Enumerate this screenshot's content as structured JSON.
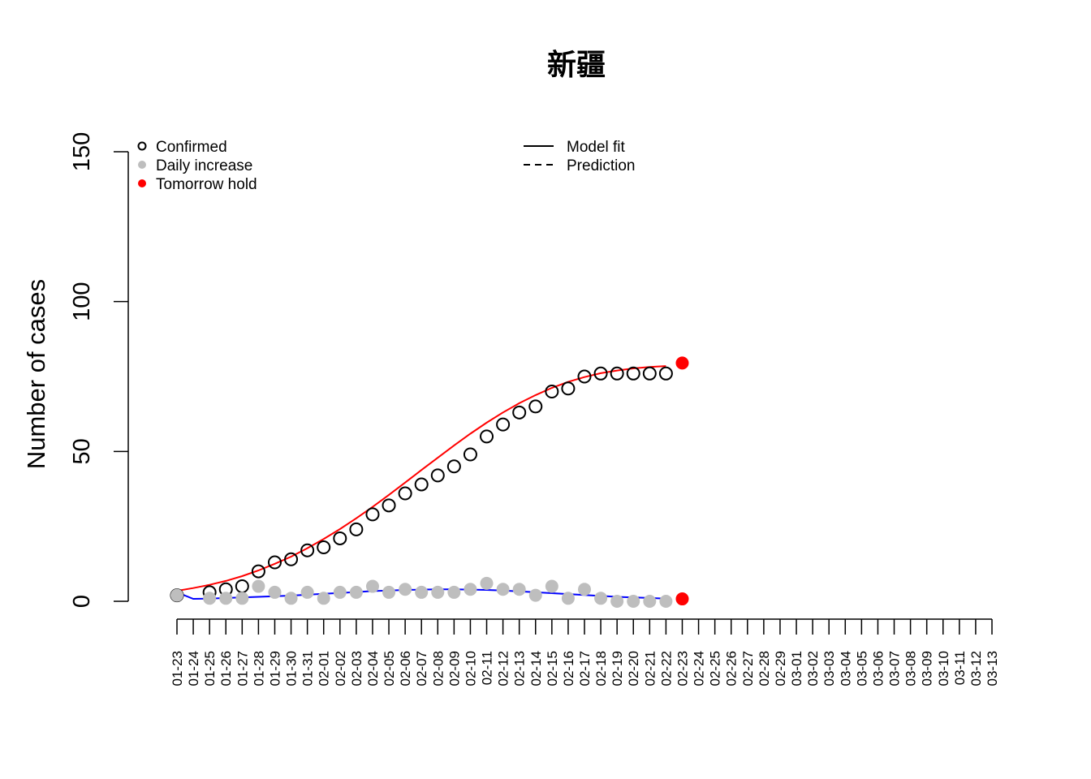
{
  "chart_data": {
    "type": "scatter",
    "title": "新疆",
    "xlabel": "",
    "ylabel": "Number of cases",
    "ylim": [
      0,
      150
    ],
    "yticks": [
      "0",
      "50",
      "100",
      "150"
    ],
    "x": [
      "01-23",
      "01-24",
      "01-25",
      "01-26",
      "01-27",
      "01-28",
      "01-29",
      "01-30",
      "01-31",
      "02-01",
      "02-02",
      "02-03",
      "02-04",
      "02-05",
      "02-06",
      "02-07",
      "02-08",
      "02-09",
      "02-10",
      "02-11",
      "02-12",
      "02-13",
      "02-14",
      "02-15",
      "02-16",
      "02-17",
      "02-18",
      "02-19",
      "02-20",
      "02-21",
      "02-22",
      "02-23",
      "02-24",
      "02-25",
      "02-26",
      "02-27",
      "02-28",
      "02-29",
      "03-01",
      "03-02",
      "03-03",
      "03-04",
      "03-05",
      "03-06",
      "03-07",
      "03-08",
      "03-09",
      "03-10",
      "03-11",
      "03-12",
      "03-13"
    ],
    "series": [
      {
        "name": "Confirmed",
        "marker": "open-circle",
        "color": "#000000",
        "points": [
          [
            "01-23",
            2
          ],
          [
            "01-25",
            3
          ],
          [
            "01-26",
            4
          ],
          [
            "01-27",
            5
          ],
          [
            "01-28",
            10
          ],
          [
            "01-29",
            13
          ],
          [
            "01-30",
            14
          ],
          [
            "01-31",
            17
          ],
          [
            "02-01",
            18
          ],
          [
            "02-02",
            21
          ],
          [
            "02-03",
            24
          ],
          [
            "02-04",
            29
          ],
          [
            "02-05",
            32
          ],
          [
            "02-06",
            36
          ],
          [
            "02-07",
            39
          ],
          [
            "02-08",
            42
          ],
          [
            "02-09",
            45
          ],
          [
            "02-10",
            49
          ],
          [
            "02-11",
            55
          ],
          [
            "02-12",
            59
          ],
          [
            "02-13",
            63
          ],
          [
            "02-14",
            65
          ],
          [
            "02-15",
            70
          ],
          [
            "02-16",
            71
          ],
          [
            "02-17",
            75
          ],
          [
            "02-18",
            76
          ],
          [
            "02-19",
            76
          ],
          [
            "02-20",
            76
          ],
          [
            "02-21",
            76
          ],
          [
            "02-22",
            76
          ]
        ]
      },
      {
        "name": "Daily increase",
        "marker": "filled-circle",
        "color": "#bebebe",
        "points": [
          [
            "01-23",
            2
          ],
          [
            "01-25",
            1
          ],
          [
            "01-26",
            1
          ],
          [
            "01-27",
            1
          ],
          [
            "01-28",
            5
          ],
          [
            "01-29",
            3
          ],
          [
            "01-30",
            1
          ],
          [
            "01-31",
            3
          ],
          [
            "02-01",
            1
          ],
          [
            "02-02",
            3
          ],
          [
            "02-03",
            3
          ],
          [
            "02-04",
            5
          ],
          [
            "02-05",
            3
          ],
          [
            "02-06",
            4
          ],
          [
            "02-07",
            3
          ],
          [
            "02-08",
            3
          ],
          [
            "02-09",
            3
          ],
          [
            "02-10",
            4
          ],
          [
            "02-11",
            6
          ],
          [
            "02-12",
            4
          ],
          [
            "02-13",
            4
          ],
          [
            "02-14",
            2
          ],
          [
            "02-15",
            5
          ],
          [
            "02-16",
            1
          ],
          [
            "02-17",
            4
          ],
          [
            "02-18",
            1
          ],
          [
            "02-19",
            0
          ],
          [
            "02-20",
            0
          ],
          [
            "02-21",
            0
          ],
          [
            "02-22",
            0
          ]
        ]
      },
      {
        "name": "Tomorrow hold",
        "marker": "filled-circle",
        "color": "#ff0000",
        "points": [
          [
            "02-23",
            79.5
          ],
          [
            "02-23",
            0.8
          ]
        ]
      },
      {
        "name": "Model fit",
        "line": "solid",
        "color": "#ff0000",
        "points": [
          [
            "01-23",
            3.5
          ],
          [
            "01-24",
            4.4
          ],
          [
            "01-25",
            5.5
          ],
          [
            "01-26",
            6.8
          ],
          [
            "01-27",
            8.4
          ],
          [
            "01-28",
            10.3
          ],
          [
            "01-29",
            12.5
          ],
          [
            "01-30",
            14.9
          ],
          [
            "01-31",
            17.7
          ],
          [
            "02-01",
            20.8
          ],
          [
            "02-02",
            24.1
          ],
          [
            "02-03",
            27.7
          ],
          [
            "02-04",
            31.5
          ],
          [
            "02-05",
            35.5
          ],
          [
            "02-06",
            39.6
          ],
          [
            "02-07",
            43.8
          ],
          [
            "02-08",
            47.9
          ],
          [
            "02-09",
            52
          ],
          [
            "02-10",
            55.9
          ],
          [
            "02-11",
            59.6
          ],
          [
            "02-12",
            63
          ],
          [
            "02-13",
            66.1
          ],
          [
            "02-14",
            68.8
          ],
          [
            "02-15",
            71.2
          ],
          [
            "02-16",
            73.2
          ],
          [
            "02-17",
            74.8
          ],
          [
            "02-18",
            76.1
          ],
          [
            "02-19",
            77
          ],
          [
            "02-20",
            77.7
          ],
          [
            "02-21",
            78.2
          ],
          [
            "02-22",
            78.5
          ]
        ]
      },
      {
        "name": "Model fit (daily)",
        "line": "solid",
        "color": "#0000ff",
        "points": [
          [
            "01-23",
            3
          ],
          [
            "01-24",
            0.8
          ],
          [
            "01-25",
            0.9
          ],
          [
            "01-26",
            1.1
          ],
          [
            "01-27",
            1.3
          ],
          [
            "01-28",
            1.5
          ],
          [
            "01-29",
            1.7
          ],
          [
            "01-30",
            1.9
          ],
          [
            "01-31",
            2.2
          ],
          [
            "02-01",
            2.5
          ],
          [
            "02-02",
            2.8
          ],
          [
            "02-03",
            3.1
          ],
          [
            "02-04",
            3.4
          ],
          [
            "02-05",
            3.6
          ],
          [
            "02-06",
            3.8
          ],
          [
            "02-07",
            3.9
          ],
          [
            "02-08",
            4
          ],
          [
            "02-09",
            4
          ],
          [
            "02-10",
            3.9
          ],
          [
            "02-11",
            3.8
          ],
          [
            "02-12",
            3.6
          ],
          [
            "02-13",
            3.3
          ],
          [
            "02-14",
            3
          ],
          [
            "02-15",
            2.7
          ],
          [
            "02-16",
            2.4
          ],
          [
            "02-17",
            2.1
          ],
          [
            "02-18",
            1.8
          ],
          [
            "02-19",
            1.5
          ],
          [
            "02-20",
            1.3
          ],
          [
            "02-21",
            1.1
          ],
          [
            "02-22",
            0.9
          ]
        ]
      }
    ],
    "legend": {
      "left": [
        {
          "label": "Confirmed",
          "marker": "open-circle",
          "color": "#000000"
        },
        {
          "label": "Daily increase",
          "marker": "filled-circle",
          "color": "#bebebe"
        },
        {
          "label": "Tomorrow hold",
          "marker": "filled-circle",
          "color": "#ff0000"
        }
      ],
      "right": [
        {
          "label": "Model fit",
          "line": "solid",
          "color": "#000000"
        },
        {
          "label": "Prediction",
          "line": "dashed",
          "color": "#000000"
        }
      ],
      "placement": "top"
    },
    "grid": false
  }
}
